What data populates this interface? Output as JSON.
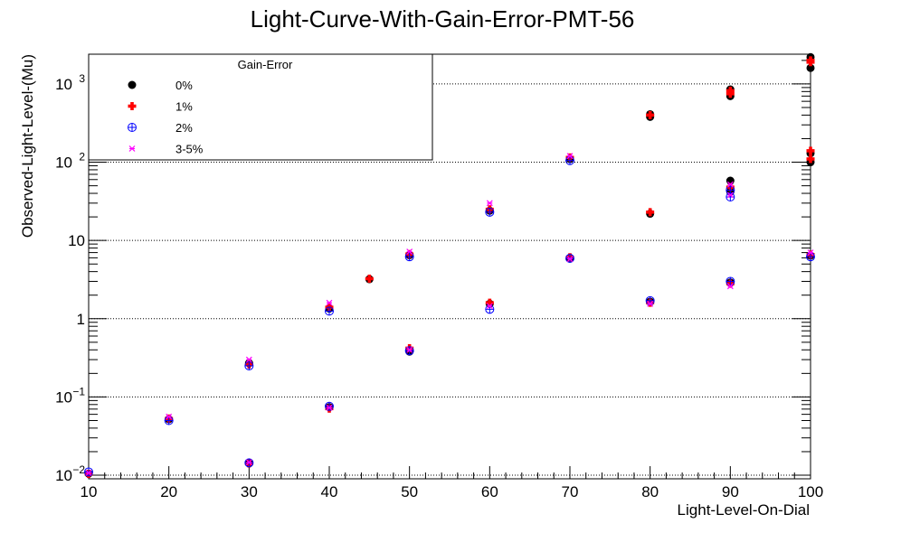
{
  "chart_data": {
    "type": "scatter",
    "title": "Light-Curve-With-Gain-Error-PMT-56",
    "xlabel": "Light-Level-On-Dial",
    "ylabel": "Observed-Light-Level-(Mu)",
    "xlim": [
      10,
      100
    ],
    "ylim": [
      0.009,
      2400
    ],
    "yscale": "log",
    "grid": "horizontal",
    "x_ticks": [
      "10",
      "20",
      "30",
      "40",
      "50",
      "60",
      "70",
      "80",
      "90",
      "100"
    ],
    "y_ticks": [
      {
        "value": 0.01,
        "base": "10",
        "exp": "−2"
      },
      {
        "value": 0.1,
        "base": "10",
        "exp": "−1"
      },
      {
        "value": 1,
        "base": "1",
        "exp": ""
      },
      {
        "value": 10,
        "base": "10",
        "exp": ""
      },
      {
        "value": 100,
        "base": "10",
        "exp": "2"
      },
      {
        "value": 1000,
        "base": "10",
        "exp": "3"
      }
    ],
    "legend": {
      "title": "Gain-Error",
      "placement": "top-left"
    },
    "series": [
      {
        "name": "0%",
        "color": "#000000",
        "marker": "circle",
        "points": [
          [
            10,
            0.0105
          ],
          [
            20,
            0.052
          ],
          [
            30,
            0.27
          ],
          [
            30,
            0.0142
          ],
          [
            40,
            1.35
          ],
          [
            40,
            0.074
          ],
          [
            45,
            3.2
          ],
          [
            50,
            6.5
          ],
          [
            50,
            0.38
          ],
          [
            60,
            24
          ],
          [
            60,
            1.55
          ],
          [
            70,
            110
          ],
          [
            70,
            6.0
          ],
          [
            80,
            380
          ],
          [
            80,
            410
          ],
          [
            80,
            22
          ],
          [
            80,
            1.65
          ],
          [
            90,
            700
          ],
          [
            90,
            850
          ],
          [
            90,
            58
          ],
          [
            90,
            42
          ],
          [
            90,
            2.9
          ],
          [
            100,
            1600
          ],
          [
            100,
            2200
          ],
          [
            100,
            130
          ],
          [
            100,
            100
          ],
          [
            100,
            6.4
          ]
        ]
      },
      {
        "name": "1%",
        "color": "#ff0000",
        "marker": "cross",
        "points": [
          [
            10,
            0.0104
          ],
          [
            20,
            0.053
          ],
          [
            30,
            0.26
          ],
          [
            30,
            0.0141
          ],
          [
            40,
            1.4
          ],
          [
            40,
            0.071
          ],
          [
            45,
            3.25
          ],
          [
            50,
            6.7
          ],
          [
            50,
            0.42
          ],
          [
            60,
            25
          ],
          [
            60,
            1.6
          ],
          [
            70,
            115
          ],
          [
            70,
            6.1
          ],
          [
            80,
            400
          ],
          [
            80,
            23
          ],
          [
            80,
            1.6
          ],
          [
            90,
            820
          ],
          [
            90,
            750
          ],
          [
            90,
            48
          ],
          [
            90,
            2.8
          ],
          [
            100,
            1900
          ],
          [
            100,
            2000
          ],
          [
            100,
            140
          ],
          [
            100,
            110
          ],
          [
            100,
            6.6
          ]
        ]
      },
      {
        "name": "2%",
        "color": "#0000ff",
        "marker": "circle-plus",
        "points": [
          [
            10,
            0.011
          ],
          [
            20,
            0.05
          ],
          [
            30,
            0.25
          ],
          [
            30,
            0.0144
          ],
          [
            40,
            1.25
          ],
          [
            40,
            0.076
          ],
          [
            50,
            6.2
          ],
          [
            50,
            0.39
          ],
          [
            60,
            23
          ],
          [
            60,
            1.32
          ],
          [
            70,
            105
          ],
          [
            70,
            5.9
          ],
          [
            80,
            1.7
          ],
          [
            90,
            36
          ],
          [
            90,
            44
          ],
          [
            90,
            3.0
          ],
          [
            100,
            6.2
          ]
        ]
      },
      {
        "name": "3-5%",
        "color": "#ff00ff",
        "marker": "star",
        "points": [
          [
            10,
            0.0107
          ],
          [
            20,
            0.056
          ],
          [
            30,
            0.3
          ],
          [
            30,
            0.0146
          ],
          [
            40,
            1.6
          ],
          [
            40,
            0.073
          ],
          [
            50,
            7.2
          ],
          [
            50,
            0.4
          ],
          [
            60,
            30
          ],
          [
            60,
            1.45
          ],
          [
            70,
            120
          ],
          [
            70,
            5.8
          ],
          [
            80,
            1.55
          ],
          [
            90,
            52
          ],
          [
            90,
            38
          ],
          [
            90,
            2.6
          ],
          [
            100,
            7.0
          ]
        ]
      }
    ]
  }
}
